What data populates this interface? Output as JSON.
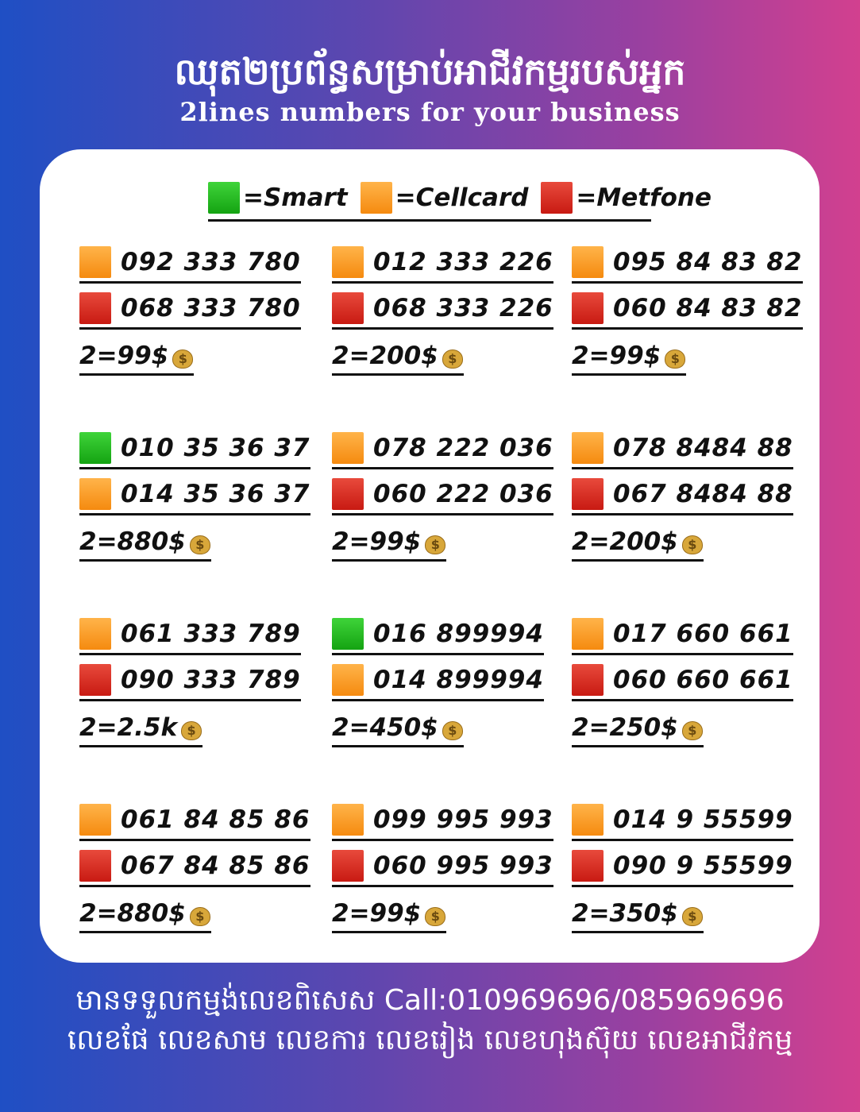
{
  "header": {
    "title": "ឈុត២ប្រព័ន្ធសម្រាប់អាជីវកម្មរបស់អ្នក",
    "subtitle": "2lines numbers for your business"
  },
  "legend": [
    {
      "carrier": "smart",
      "label": "=Smart",
      "color": "#22b11f"
    },
    {
      "carrier": "cellcard",
      "label": "=Cellcard",
      "color": "#f7941d"
    },
    {
      "carrier": "metfone",
      "label": "=Metfone",
      "color": "#d42a1e"
    }
  ],
  "groups": [
    {
      "lines": [
        {
          "carrier": "cellcard",
          "number": "092 333 780"
        },
        {
          "carrier": "metfone",
          "number": "068 333 780"
        }
      ],
      "price": "2=99$"
    },
    {
      "lines": [
        {
          "carrier": "cellcard",
          "number": "012 333 226"
        },
        {
          "carrier": "metfone",
          "number": "068 333 226"
        }
      ],
      "price": "2=200$"
    },
    {
      "lines": [
        {
          "carrier": "cellcard",
          "number": "095 84 83 82"
        },
        {
          "carrier": "metfone",
          "number": "060 84 83 82"
        }
      ],
      "price": "2=99$"
    },
    {
      "lines": [
        {
          "carrier": "smart",
          "number": "010 35 36 37"
        },
        {
          "carrier": "cellcard",
          "number": "014 35 36 37"
        }
      ],
      "price": "2=880$"
    },
    {
      "lines": [
        {
          "carrier": "cellcard",
          "number": "078 222 036"
        },
        {
          "carrier": "metfone",
          "number": "060 222 036"
        }
      ],
      "price": "2=99$"
    },
    {
      "lines": [
        {
          "carrier": "cellcard",
          "number": "078 8484 88"
        },
        {
          "carrier": "metfone",
          "number": "067 8484 88"
        }
      ],
      "price": "2=200$"
    },
    {
      "lines": [
        {
          "carrier": "cellcard",
          "number": "061 333 789"
        },
        {
          "carrier": "metfone",
          "number": "090 333 789"
        }
      ],
      "price": "2=2.5k"
    },
    {
      "lines": [
        {
          "carrier": "smart",
          "number": "016 899994"
        },
        {
          "carrier": "cellcard",
          "number": "014 899994"
        }
      ],
      "price": "2=450$"
    },
    {
      "lines": [
        {
          "carrier": "cellcard",
          "number": "017 660 661"
        },
        {
          "carrier": "metfone",
          "number": "060 660 661"
        }
      ],
      "price": "2=250$"
    },
    {
      "lines": [
        {
          "carrier": "cellcard",
          "number": "061 84 85 86"
        },
        {
          "carrier": "metfone",
          "number": "067 84 85 86"
        }
      ],
      "price": "2=880$"
    },
    {
      "lines": [
        {
          "carrier": "cellcard",
          "number": "099 995 993"
        },
        {
          "carrier": "metfone",
          "number": "060 995 993"
        }
      ],
      "price": "2=99$"
    },
    {
      "lines": [
        {
          "carrier": "cellcard",
          "number": "014 9 55599"
        },
        {
          "carrier": "metfone",
          "number": "090 9 55599"
        }
      ],
      "price": "2=350$"
    }
  ],
  "price_icon": "money-bag-icon",
  "footer": {
    "line1": "មានទទួលកម្មង់លេខពិសេស Call:010969696/085969696",
    "line2": "លេខផែ លេខសាម លេខការ លេខរៀង លេខហុងស៊ុយ លេខអាជីវកម្ម"
  }
}
